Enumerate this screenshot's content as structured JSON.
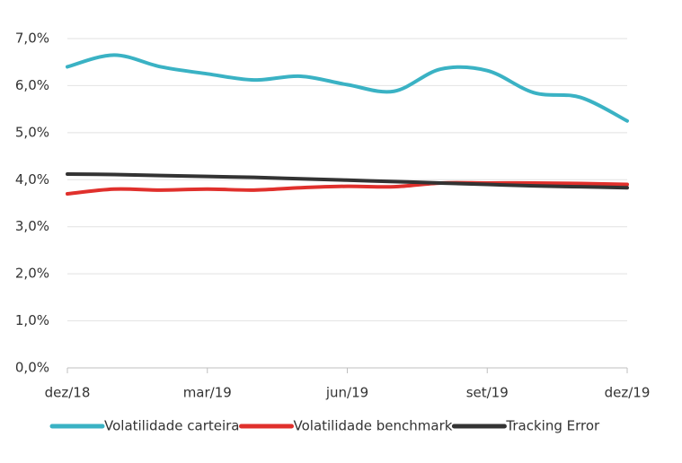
{
  "chart_data": {
    "type": "line",
    "categories": [
      "dez/18",
      null,
      null,
      "mar/19",
      null,
      null,
      "jun/19",
      null,
      null,
      "set/19",
      null,
      null,
      "dez/19"
    ],
    "series": [
      {
        "name": "Volatilidade carteira",
        "color": "#3ab2c4",
        "values": [
          6.4,
          6.65,
          6.4,
          6.25,
          6.12,
          6.2,
          6.02,
          5.88,
          6.35,
          6.32,
          5.85,
          5.75,
          5.25
        ]
      },
      {
        "name": "Volatilidade benchmark",
        "color": "#e0302c",
        "values": [
          3.7,
          3.8,
          3.78,
          3.8,
          3.78,
          3.83,
          3.86,
          3.85,
          3.93,
          3.93,
          3.93,
          3.92,
          3.9
        ]
      },
      {
        "name": "Tracking Error",
        "color": "#333333",
        "values": [
          4.12,
          4.11,
          4.09,
          4.07,
          4.05,
          4.02,
          3.99,
          3.96,
          3.93,
          3.9,
          3.87,
          3.85,
          3.83
        ]
      }
    ],
    "ylim": [
      0,
      7
    ],
    "yticks": [
      {
        "value": 0,
        "label": "0,0%"
      },
      {
        "value": 1,
        "label": "1,0%"
      },
      {
        "value": 2,
        "label": "2,0%"
      },
      {
        "value": 3,
        "label": "3,0%"
      },
      {
        "value": 4,
        "label": "4,0%"
      },
      {
        "value": 5,
        "label": "5,0%"
      },
      {
        "value": 6,
        "label": "6,0%"
      },
      {
        "value": 7,
        "label": "7,0%"
      }
    ],
    "grid": true,
    "legend": "bottom"
  }
}
